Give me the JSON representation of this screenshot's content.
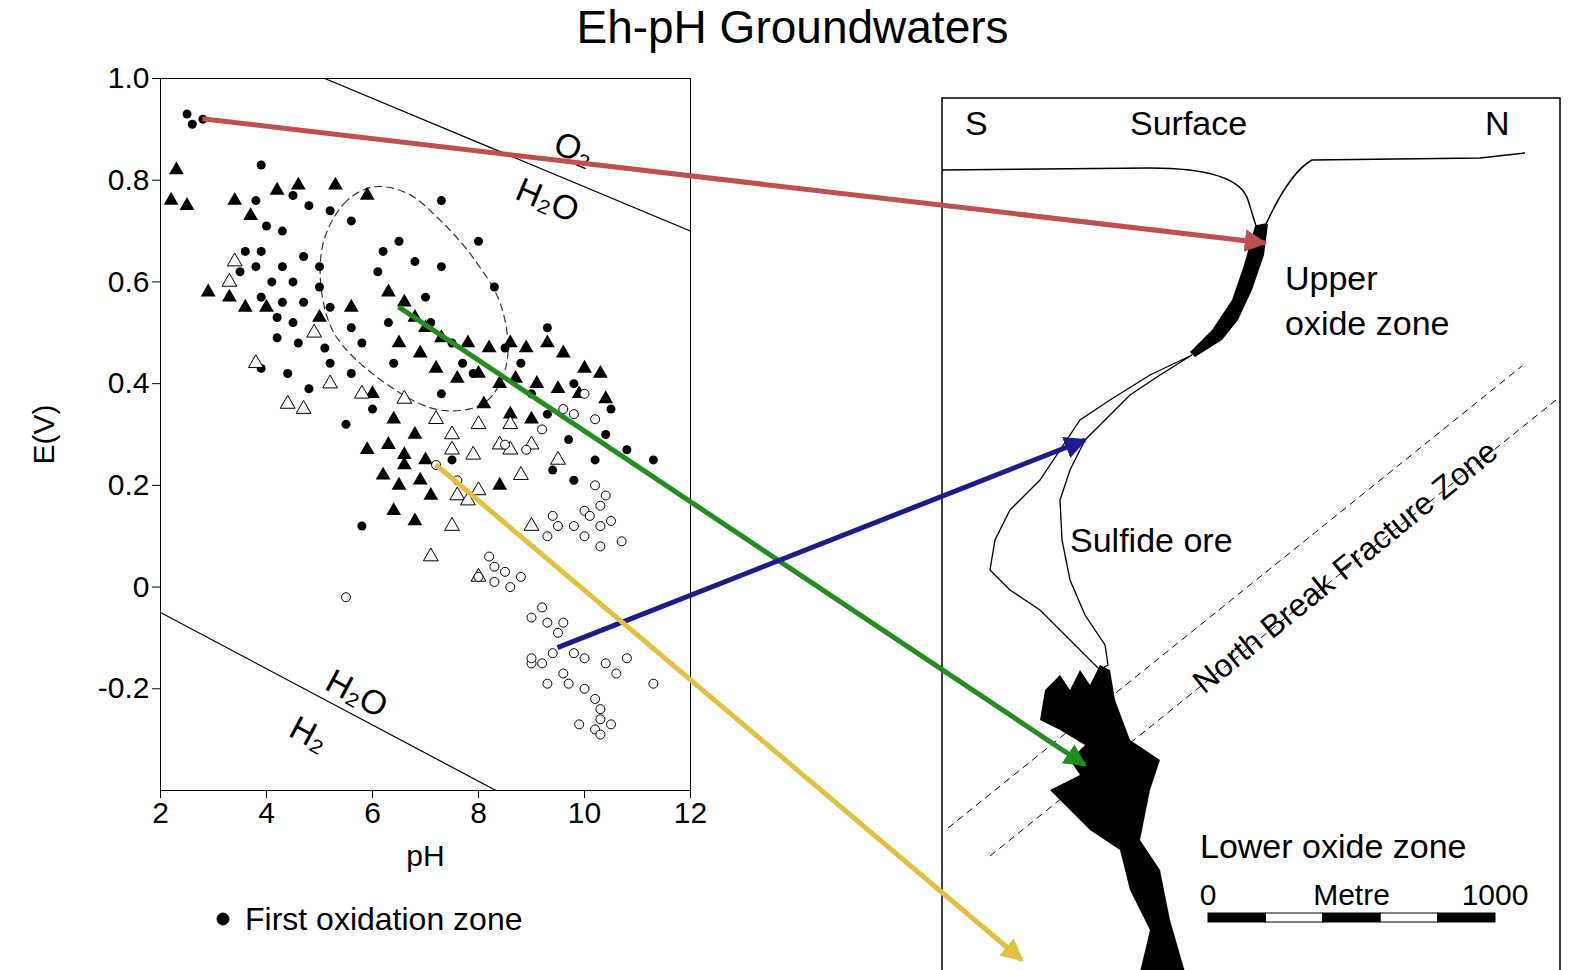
{
  "chart_data": {
    "type": "scatter",
    "title": "Eh-pH Groundwaters",
    "x_label": "pH",
    "y_label": "E(V)",
    "xlim": [
      2,
      12
    ],
    "xticks": [
      2,
      4,
      6,
      8,
      10,
      12
    ],
    "ylim": [
      -0.4,
      1.0
    ],
    "yticks": [
      {
        "value": 1,
        "label": "1.0"
      },
      0.8,
      0.6,
      0.4,
      0.2,
      0,
      -0.2
    ],
    "legend": "bottom",
    "series": [
      {
        "name": "First oxidation zone",
        "marker": "filled_circle",
        "color": "#000000",
        "x": [
          2.5,
          2.6,
          2.8,
          3.9,
          4.5,
          4.8,
          5.2,
          5.6,
          3.8,
          4.0,
          4.3,
          3.6,
          3.9,
          4.3,
          4.7,
          5.0,
          3.5,
          3.8,
          4.1,
          4.5,
          5.0,
          3.9,
          4.3,
          4.7,
          5.2,
          4.2,
          4.5,
          5.6,
          4.2,
          4.6,
          5.1,
          5.8,
          5.2,
          5.6,
          3.9,
          4.4,
          4.8,
          5.5,
          6.1,
          6.2,
          6.5,
          6.8,
          7.3,
          7.3,
          8.0,
          8.3,
          7.0,
          6.3,
          7.1,
          7.5,
          7.7,
          6.4,
          7.3,
          7.9,
          8.5,
          8.8,
          9.3,
          9.3,
          9.8,
          10.4,
          10.2,
          9.7,
          10.8,
          11.3,
          9.4,
          9.8,
          7.5,
          6.0,
          5.8,
          9.0,
          10.5
        ],
        "values": [
          0.93,
          0.91,
          0.92,
          0.83,
          0.77,
          0.75,
          0.74,
          0.72,
          0.76,
          0.71,
          0.7,
          0.66,
          0.66,
          0.63,
          0.65,
          0.63,
          0.62,
          0.63,
          0.6,
          0.6,
          0.59,
          0.57,
          0.56,
          0.56,
          0.55,
          0.53,
          0.52,
          0.51,
          0.49,
          0.48,
          0.47,
          0.48,
          0.44,
          0.42,
          0.43,
          0.42,
          0.39,
          0.32,
          0.62,
          0.66,
          0.68,
          0.64,
          0.63,
          0.76,
          0.68,
          0.59,
          0.57,
          0.52,
          0.52,
          0.48,
          0.44,
          0.44,
          0.38,
          0.42,
          0.47,
          0.44,
          0.51,
          0.34,
          0.4,
          0.3,
          0.25,
          0.29,
          0.27,
          0.25,
          0.23,
          0.21,
          0.25,
          0.35,
          0.12,
          0.38,
          0.35
        ]
      },
      {
        "marker": "filled_triangle",
        "color": "#000000",
        "x": [
          2.2,
          2.3,
          2.5,
          3.4,
          3.7,
          4.2,
          4.6,
          5.3,
          5.9,
          2.9,
          3.3,
          3.6,
          4.0,
          5.0,
          5.6,
          6.3,
          6.6,
          6.8,
          7.0,
          7.3,
          7.8,
          8.2,
          8.6,
          8.9,
          9.3,
          9.6,
          10.0,
          10.3,
          6.5,
          6.9,
          7.2,
          7.6,
          8.0,
          8.4,
          8.7,
          9.1,
          9.5,
          9.9,
          10.4,
          8.1,
          8.6,
          9.0,
          6.0,
          6.4,
          6.8,
          6.3,
          6.6,
          7.0,
          6.2,
          6.5,
          6.9,
          7.1,
          6.4,
          6.8,
          6.6,
          5.9,
          8.4
        ],
        "values": [
          0.76,
          0.82,
          0.75,
          0.76,
          0.73,
          0.78,
          0.79,
          0.79,
          0.77,
          0.58,
          0.57,
          0.55,
          0.55,
          0.53,
          0.55,
          0.58,
          0.56,
          0.53,
          0.51,
          0.49,
          0.48,
          0.47,
          0.48,
          0.47,
          0.48,
          0.46,
          0.43,
          0.42,
          0.48,
          0.46,
          0.43,
          0.41,
          0.42,
          0.4,
          0.41,
          0.4,
          0.39,
          0.38,
          0.37,
          0.36,
          0.34,
          0.33,
          0.38,
          0.33,
          0.3,
          0.28,
          0.26,
          0.25,
          0.22,
          0.2,
          0.21,
          0.18,
          0.15,
          0.13,
          0.24,
          0.27,
          0.2
        ]
      },
      {
        "marker": "open_triangle",
        "color": "#000000",
        "x": [
          3.4,
          3.3,
          4.9,
          3.8,
          5.2,
          5.8,
          4.4,
          4.7,
          6.6,
          7.2,
          8.0,
          8.6,
          7.5,
          8.4,
          8.6,
          9.0,
          7.5,
          7.9,
          8.8,
          9.5,
          7.6,
          7.8,
          8.0,
          7.5,
          9.0,
          7.1,
          8.0
        ],
        "values": [
          0.64,
          0.6,
          0.5,
          0.44,
          0.4,
          0.38,
          0.36,
          0.35,
          0.37,
          0.33,
          0.32,
          0.32,
          0.3,
          0.28,
          0.27,
          0.28,
          0.27,
          0.26,
          0.22,
          0.25,
          0.18,
          0.17,
          0.19,
          0.12,
          0.12,
          0.06,
          0.02
        ]
      },
      {
        "marker": "open_circle",
        "color": "#000000",
        "x": [
          7.2,
          7.6,
          8.5,
          8.9,
          9.2,
          9.8,
          10.0,
          10.2,
          9.6,
          10.2,
          10.4,
          10.0,
          10.3,
          10.1,
          10.3,
          10.5,
          9.4,
          9.8,
          9.5,
          9.3,
          10.0,
          10.7,
          10.3,
          8.2,
          8.3,
          8.5,
          8.0,
          8.3,
          8.6,
          8.8,
          5.5,
          9.2,
          9.0,
          9.3,
          9.6,
          9.5,
          9.8,
          9.4,
          9.2,
          10.0,
          10.4,
          10.8,
          9.0,
          9.6,
          9.7,
          10.0,
          10.2,
          10.6,
          11.3,
          10.3,
          10.3,
          10.2,
          10.5,
          9.9,
          10.3,
          9.0,
          9.3
        ],
        "values": [
          0.24,
          0.21,
          0.28,
          0.27,
          0.31,
          0.34,
          0.38,
          0.33,
          0.35,
          0.2,
          0.18,
          0.15,
          0.16,
          0.14,
          0.12,
          0.13,
          0.14,
          0.12,
          0.12,
          0.1,
          0.1,
          0.09,
          0.08,
          0.06,
          0.04,
          0.03,
          0.02,
          0.01,
          0.0,
          0.02,
          -0.02,
          -0.04,
          -0.06,
          -0.07,
          -0.07,
          -0.09,
          -0.13,
          -0.13,
          -0.15,
          -0.14,
          -0.15,
          -0.14,
          -0.15,
          -0.17,
          -0.19,
          -0.2,
          -0.22,
          -0.17,
          -0.19,
          -0.24,
          -0.26,
          -0.28,
          -0.27,
          -0.27,
          -0.29,
          -0.14,
          -0.19
        ]
      }
    ],
    "reference_lines": [
      {
        "x": [
          5.1,
          12
        ],
        "values": [
          1.0,
          0.7
        ]
      },
      {
        "x": [
          2,
          8.33
        ],
        "values": [
          -0.05,
          -0.4
        ]
      }
    ],
    "annotations": [
      {
        "text": "O₂",
        "x": 9.8,
        "y": 0.86,
        "line": 0
      },
      {
        "text": "H₂O",
        "x": 9.3,
        "y": 0.76,
        "line": 0
      },
      {
        "text": "H₂O",
        "x": 5.7,
        "y": -0.21,
        "line": 1
      },
      {
        "text": "H₂",
        "x": 4.8,
        "y": -0.29,
        "line": 1
      }
    ],
    "region": {
      "line_style": "dashed",
      "x": [
        6.03,
        5.51,
        5.09,
        5.03,
        5.3,
        6.24,
        7.28,
        8.12,
        8.53,
        8.43,
        7.91,
        7.28,
        6.66
      ],
      "values": [
        0.787,
        0.759,
        0.684,
        0.589,
        0.495,
        0.401,
        0.348,
        0.363,
        0.439,
        0.552,
        0.646,
        0.721,
        0.774
      ]
    },
    "arrows": [
      {
        "x": 2.8,
        "y": 0.92,
        "color": "#c0504d"
      },
      {
        "x": 6.5,
        "y": 0.55,
        "color": "#218c21"
      },
      {
        "x": 9.5,
        "y": -0.12,
        "color": "#1c1c8c"
      },
      {
        "x": 7.2,
        "y": 0.24,
        "color": "#e2c141"
      }
    ]
  },
  "diagram": {
    "left_label": "S",
    "surface_label": "Surface",
    "right_label": "N",
    "upper_zone": "Upper oxide zone",
    "ore": "Sulfide ore",
    "fracture": "North Break Fracture Zone",
    "lower_zone": "Lower oxide zone",
    "scale_bar": {
      "label": "Metre",
      "ticks": [
        0,
        1000
      ]
    }
  }
}
